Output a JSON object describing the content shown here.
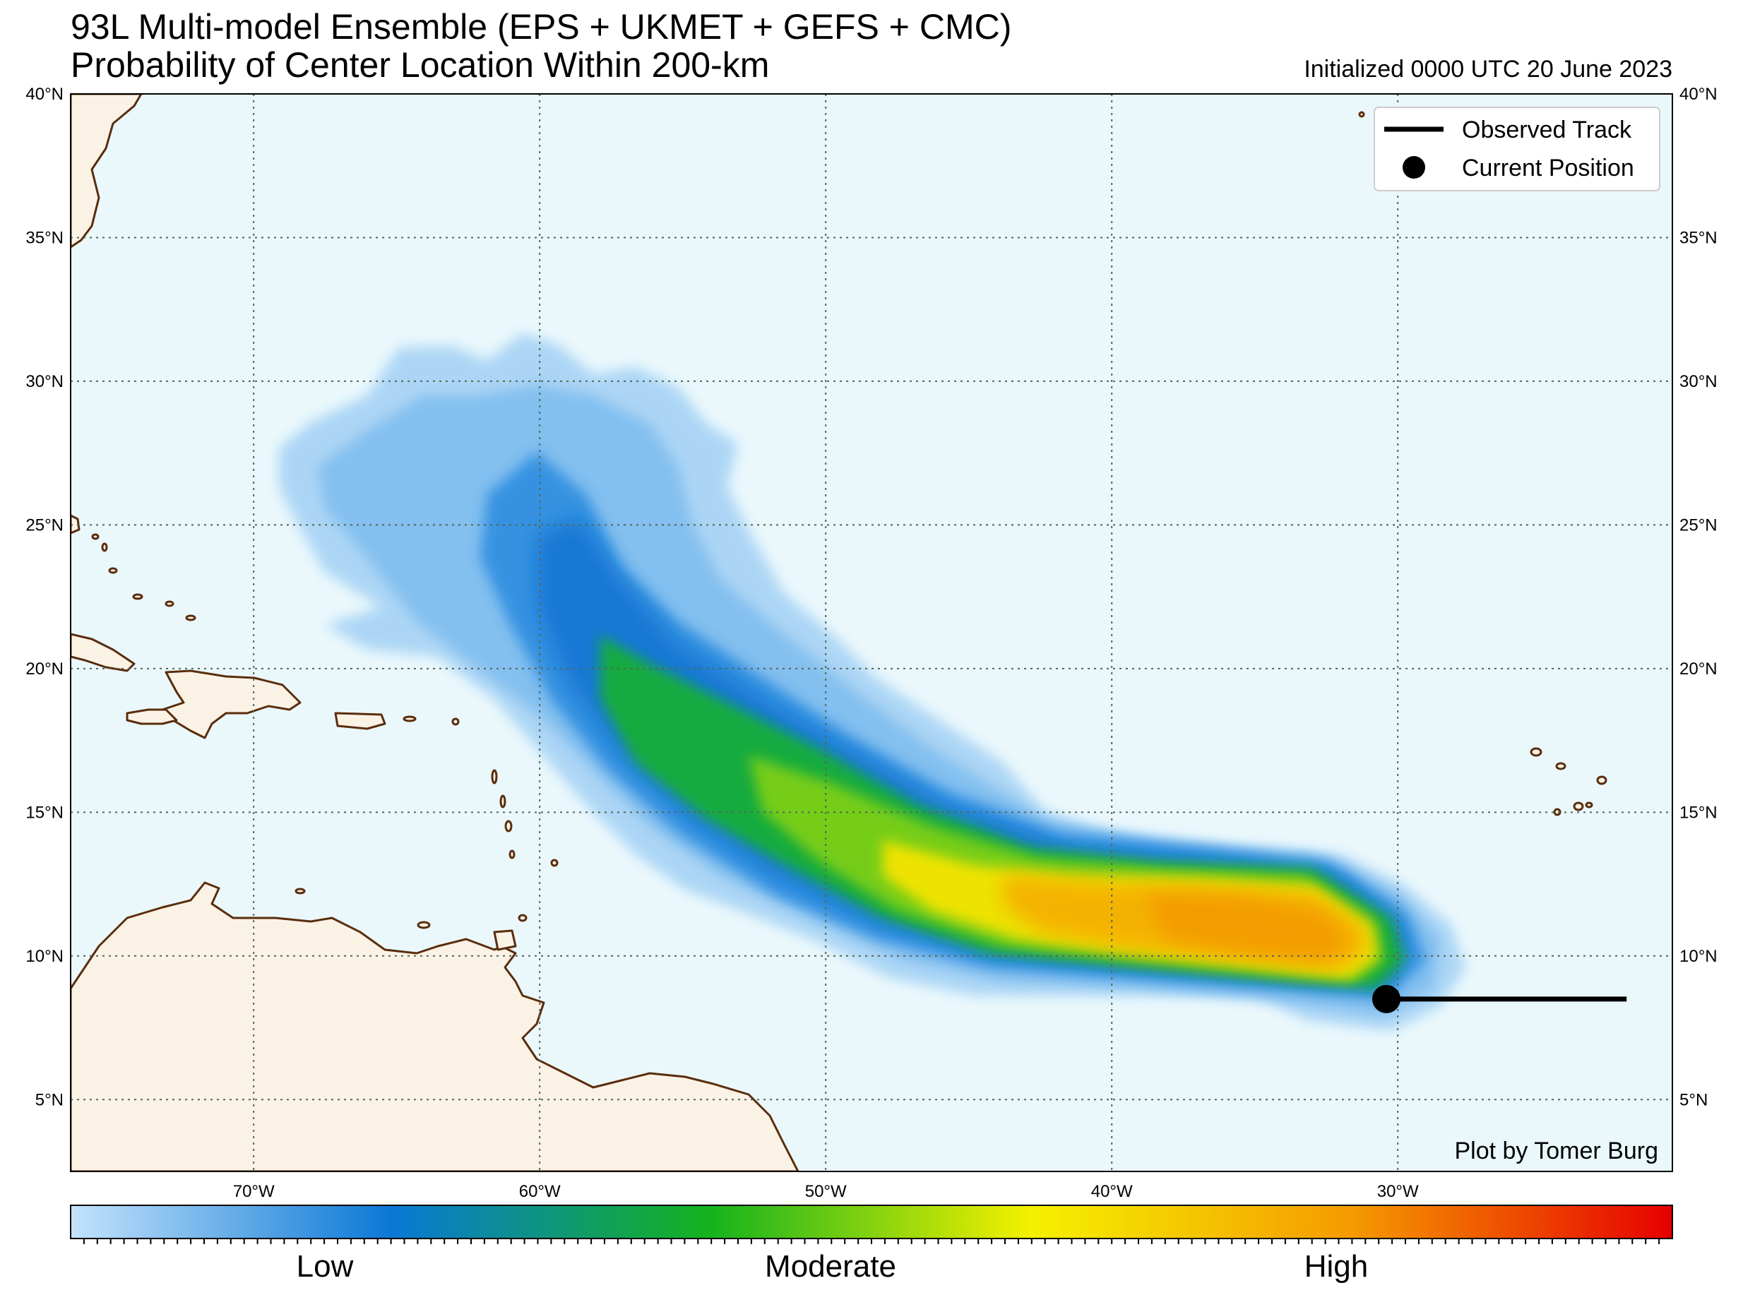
{
  "title": {
    "line1": "93L Multi-model Ensemble (EPS + UKMET + GEFS + CMC)",
    "line2": "Probability of Center Location Within 200-km",
    "initialized": "Initialized 0000 UTC 20 June 2023"
  },
  "map": {
    "lon_range": [
      -76.4,
      -20.4
    ],
    "lat_range": [
      2.5,
      40.0
    ],
    "colors": {
      "ocean": "#eaf8fc",
      "land": "#fbf2e6",
      "coast": "#5a2d0c",
      "grid": "#556655"
    },
    "lat_ticks": [
      {
        "value": 5,
        "label": "5°N"
      },
      {
        "value": 10,
        "label": "10°N"
      },
      {
        "value": 15,
        "label": "15°N"
      },
      {
        "value": 20,
        "label": "20°N"
      },
      {
        "value": 25,
        "label": "25°N"
      },
      {
        "value": 30,
        "label": "30°N"
      },
      {
        "value": 35,
        "label": "35°N"
      },
      {
        "value": 40,
        "label": "40°N"
      }
    ],
    "lon_ticks": [
      {
        "value": -70,
        "label": "70°W"
      },
      {
        "value": -60,
        "label": "60°W"
      },
      {
        "value": -50,
        "label": "50°W"
      },
      {
        "value": -40,
        "label": "40°W"
      },
      {
        "value": -30,
        "label": "30°W"
      }
    ]
  },
  "legend": {
    "observed_track": "Observed Track",
    "current_position": "Current Position"
  },
  "observed_track": [
    [
      -30.4,
      8.5
    ],
    [
      -22.0,
      8.5
    ]
  ],
  "current_position": {
    "lon": -30.4,
    "lat": 8.5
  },
  "credit": "Plot by Tomer Burg",
  "colorbar": {
    "labels": [
      "Low",
      "Moderate",
      "High"
    ],
    "stops": [
      "#c4e3fb",
      "#0a78d6",
      "#15b31e",
      "#f5f100",
      "#f59a00",
      "#e60000"
    ]
  }
}
